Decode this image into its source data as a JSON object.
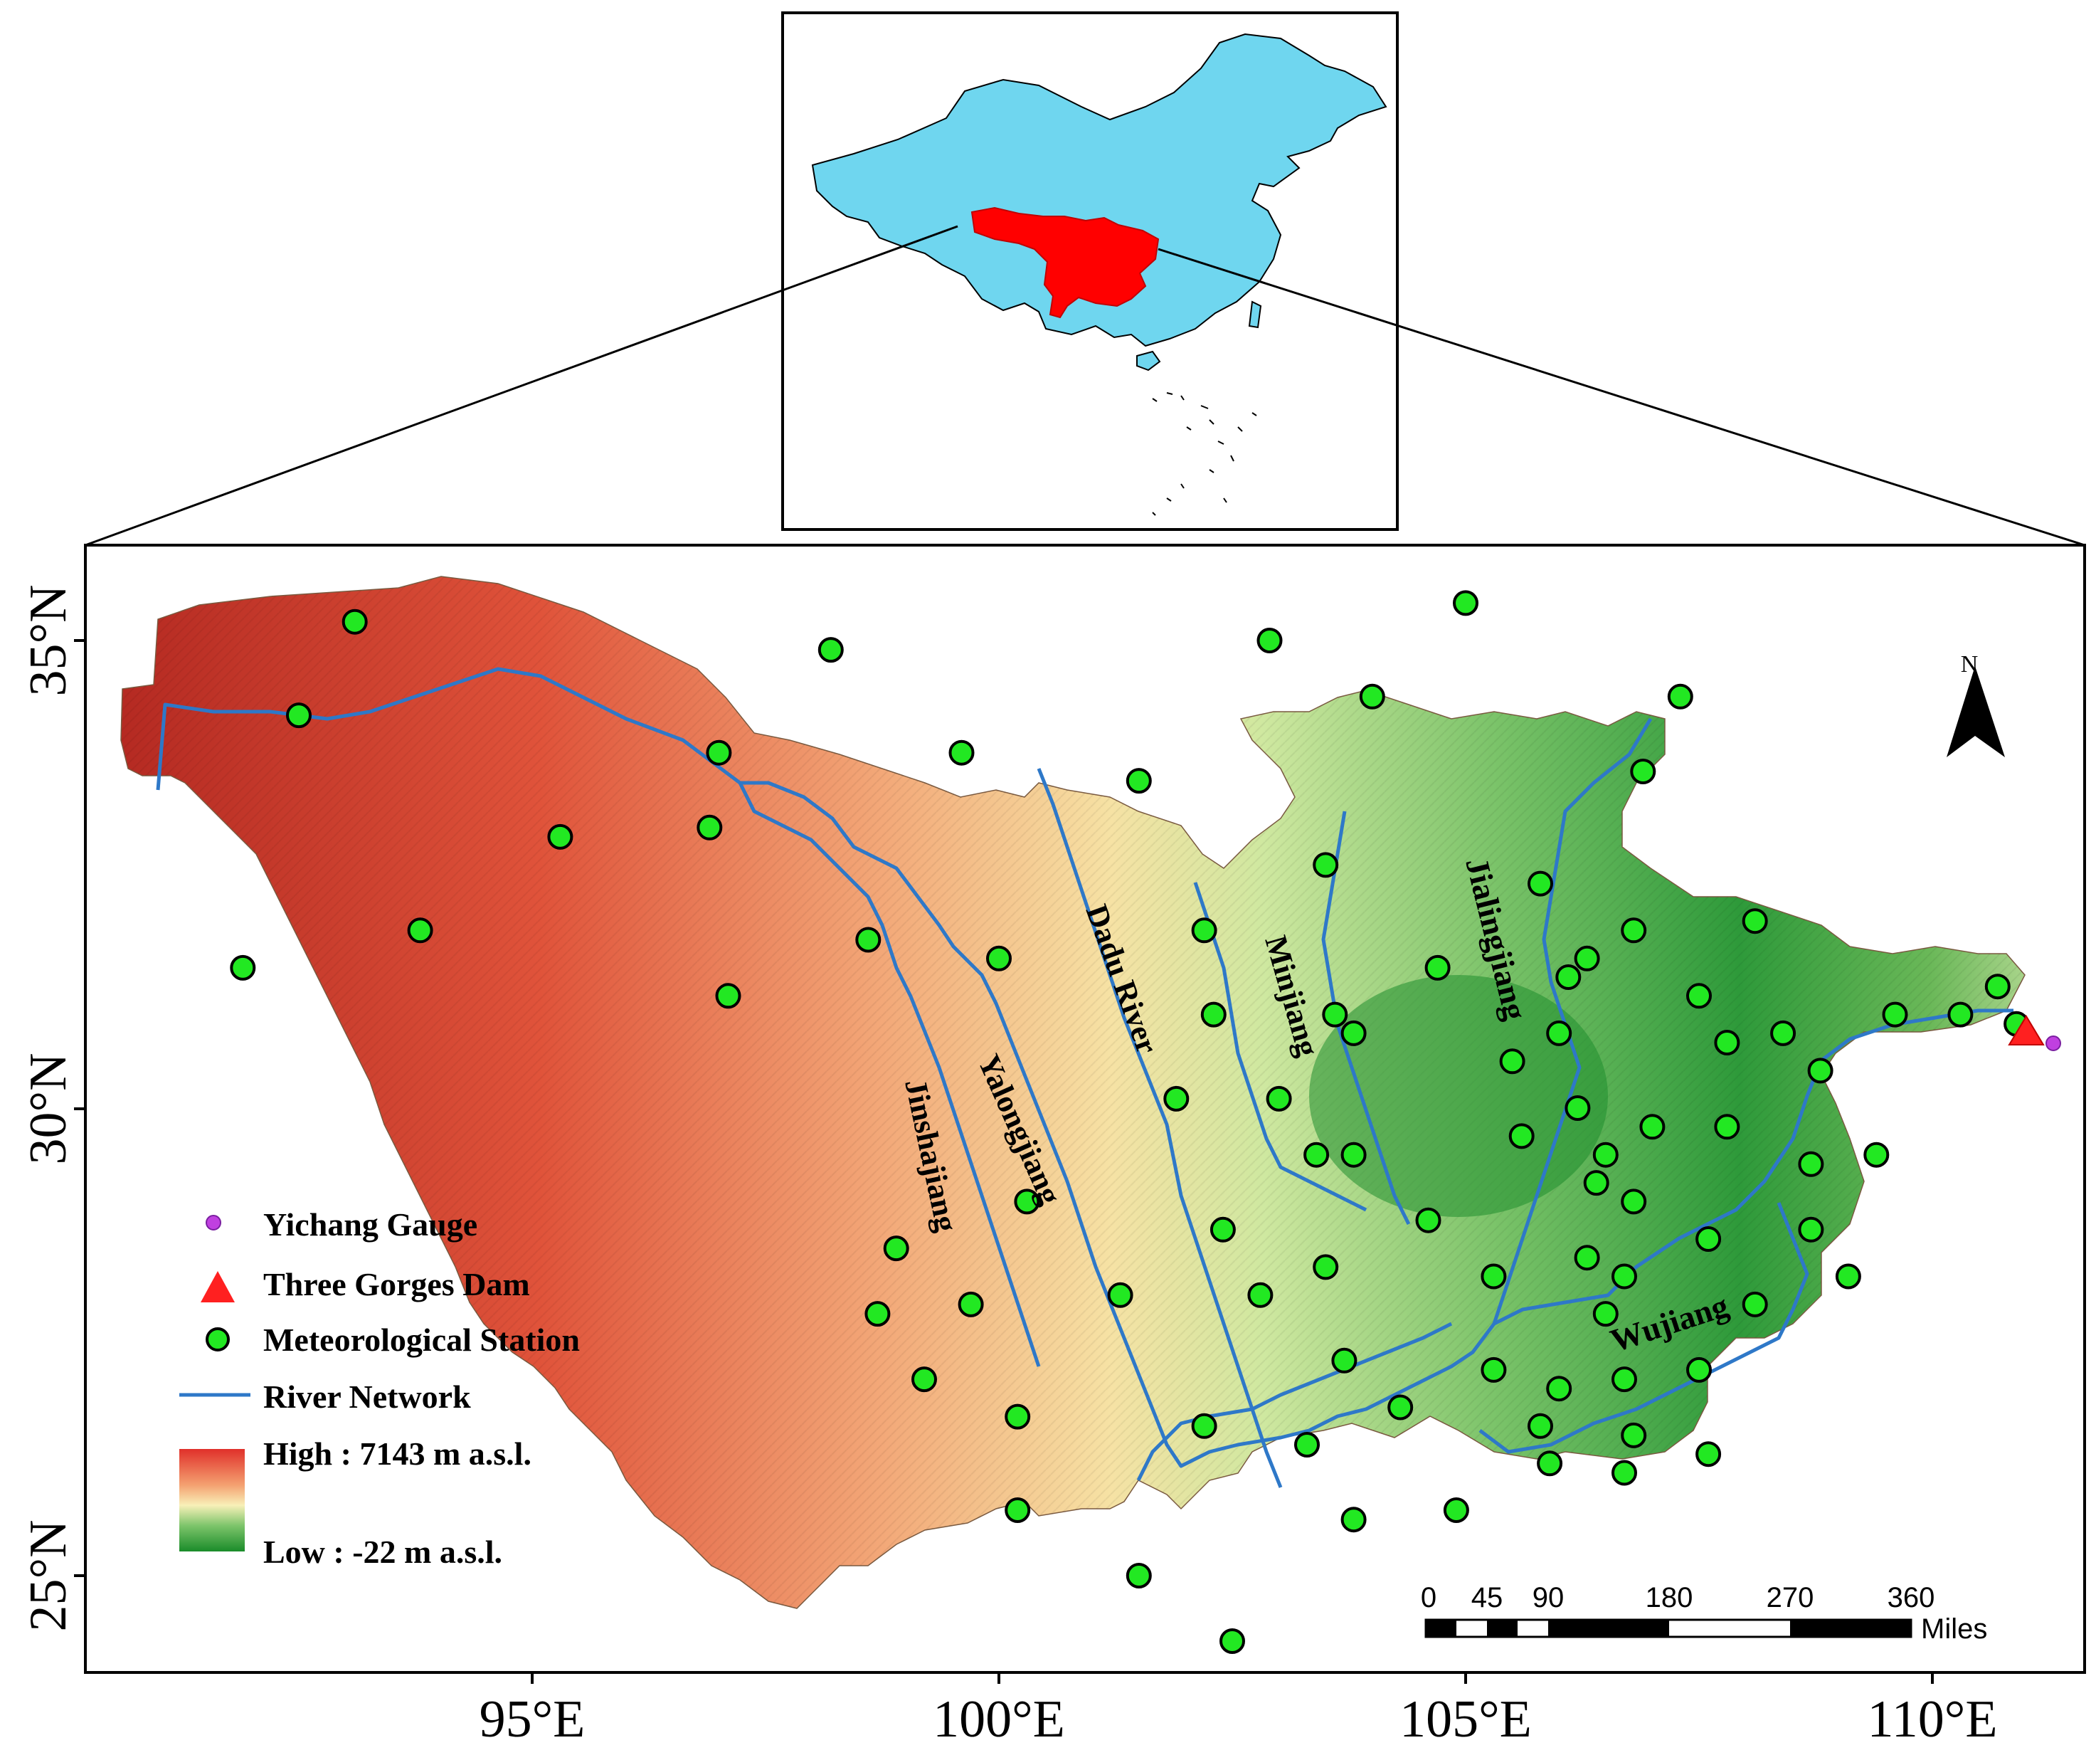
{
  "inset": {
    "title": ""
  },
  "axes": {
    "lat_labels": [
      "35°N",
      "30°N",
      "25°N"
    ],
    "lon_labels": [
      "95°E",
      "100°E",
      "105°E",
      "110°E"
    ]
  },
  "rivers": {
    "jinshajiang": "Jinshajiang",
    "yalongjiang": "Yalongjiang",
    "dadu": "Dadu River",
    "minjiang": "Minjiang",
    "jialingjiang": "Jialingjiang",
    "wujiang": "Wujiang"
  },
  "north_arrow": {
    "label": "N"
  },
  "legend": {
    "gauge": "Yichang Gauge",
    "dam": "Three Gorges Dam",
    "station": "Meteorological Station",
    "river": "River Network",
    "high": "High : 7143 m a.s.l.",
    "low": "Low : -22 m a.s.l."
  },
  "scale_bar": {
    "ticks": [
      "0",
      "45",
      "90",
      "180",
      "270",
      "360"
    ],
    "unit": "Miles"
  },
  "colors": {
    "china_fill": "#6fd6ef",
    "basin_inset": "#ff0000",
    "station": "#22e822",
    "river": "#2e78c8",
    "gauge": "#c040e0",
    "dam": "#ff2020",
    "dem_high": "#c8322a",
    "dem_mid": "#f4e8a8",
    "dem_low": "#1a8c2a"
  },
  "stations": [
    [
      93.1,
      35.2
    ],
    [
      92.5,
      34.2
    ],
    [
      91.9,
      31.5
    ],
    [
      93.8,
      31.9
    ],
    [
      95.3,
      32.9
    ],
    [
      97.0,
      33.8
    ],
    [
      96.9,
      33.0
    ],
    [
      97.1,
      31.2
    ],
    [
      98.2,
      34.9
    ],
    [
      98.6,
      31.8
    ],
    [
      99.6,
      33.8
    ],
    [
      100.0,
      31.6
    ],
    [
      101.5,
      33.5
    ],
    [
      102.9,
      35.0
    ],
    [
      104.0,
      34.4
    ],
    [
      105.0,
      35.4
    ],
    [
      107.3,
      34.4
    ],
    [
      106.9,
      33.6
    ],
    [
      103.5,
      32.6
    ],
    [
      102.2,
      31.9
    ],
    [
      102.3,
      31.0
    ],
    [
      103.6,
      31.0
    ],
    [
      103.8,
      30.8
    ],
    [
      104.7,
      31.5
    ],
    [
      105.8,
      32.4
    ],
    [
      106.3,
      31.6
    ],
    [
      106.8,
      31.9
    ],
    [
      106.1,
      31.4
    ],
    [
      105.5,
      30.5
    ],
    [
      106.0,
      30.8
    ],
    [
      107.5,
      31.2
    ],
    [
      107.8,
      30.7
    ],
    [
      108.1,
      32.0
    ],
    [
      108.4,
      30.8
    ],
    [
      109.6,
      31.0
    ],
    [
      110.3,
      31.0
    ],
    [
      110.7,
      31.3
    ],
    [
      110.9,
      30.9
    ],
    [
      101.9,
      30.1
    ],
    [
      103.0,
      30.1
    ],
    [
      103.4,
      29.5
    ],
    [
      103.8,
      29.5
    ],
    [
      105.6,
      29.7
    ],
    [
      106.2,
      30.0
    ],
    [
      106.5,
      29.5
    ],
    [
      107.0,
      29.8
    ],
    [
      107.8,
      29.8
    ],
    [
      108.8,
      30.4
    ],
    [
      108.7,
      29.4
    ],
    [
      109.4,
      29.5
    ],
    [
      106.4,
      29.2
    ],
    [
      106.8,
      29.0
    ],
    [
      104.6,
      28.8
    ],
    [
      103.5,
      28.3
    ],
    [
      102.4,
      28.7
    ],
    [
      102.8,
      28.0
    ],
    [
      101.3,
      28.0
    ],
    [
      100.3,
      29.0
    ],
    [
      98.9,
      28.5
    ],
    [
      99.7,
      27.9
    ],
    [
      98.7,
      27.8
    ],
    [
      99.2,
      27.1
    ],
    [
      100.2,
      26.7
    ],
    [
      102.2,
      26.6
    ],
    [
      103.3,
      26.4
    ],
    [
      103.7,
      27.3
    ],
    [
      104.3,
      26.8
    ],
    [
      105.3,
      28.2
    ],
    [
      106.3,
      28.4
    ],
    [
      106.7,
      28.2
    ],
    [
      107.6,
      28.6
    ],
    [
      108.7,
      28.7
    ],
    [
      109.1,
      28.2
    ],
    [
      108.1,
      27.9
    ],
    [
      106.5,
      27.8
    ],
    [
      105.3,
      27.2
    ],
    [
      106.0,
      27.0
    ],
    [
      106.7,
      27.1
    ],
    [
      107.5,
      27.2
    ],
    [
      105.8,
      26.6
    ],
    [
      106.8,
      26.5
    ],
    [
      105.9,
      26.2
    ],
    [
      106.7,
      26.1
    ],
    [
      107.6,
      26.3
    ],
    [
      104.9,
      25.7
    ],
    [
      103.8,
      25.6
    ],
    [
      100.2,
      25.7
    ],
    [
      101.5,
      25.0
    ],
    [
      102.5,
      24.3
    ]
  ]
}
